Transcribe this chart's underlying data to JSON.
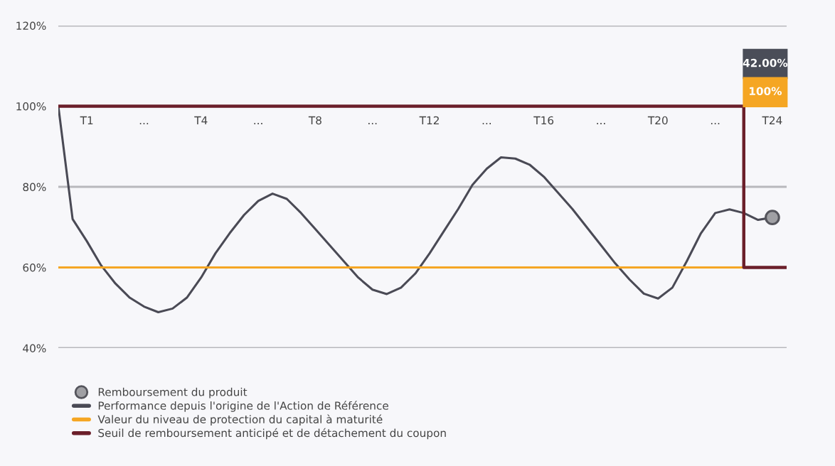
{
  "chart_data": {
    "type": "line",
    "ylim": [
      40,
      120
    ],
    "yticks": [
      {
        "value": 40,
        "label": "40%"
      },
      {
        "value": 60,
        "label": "60%"
      },
      {
        "value": 80,
        "label": "80%"
      },
      {
        "value": 100,
        "label": "100%"
      },
      {
        "value": 120,
        "label": "120%"
      }
    ],
    "categories": [
      null,
      null,
      "T1",
      null,
      null,
      null,
      "...",
      null,
      null,
      null,
      "T4",
      null,
      null,
      null,
      "...",
      null,
      null,
      null,
      "T8",
      null,
      null,
      null,
      "...",
      null,
      null,
      null,
      "T12",
      null,
      null,
      null,
      "...",
      null,
      null,
      null,
      "T16",
      null,
      null,
      null,
      "...",
      null,
      null,
      null,
      "T20",
      null,
      null,
      null,
      "...",
      null,
      null,
      null,
      "T24",
      null
    ],
    "grid": "y",
    "legend": "bottom left",
    "series": [
      {
        "name": "Remboursement du produit",
        "type": "scatter",
        "marker": "circle",
        "color": "#a0a0a4",
        "values": [
          null,
          null,
          null,
          null,
          null,
          null,
          null,
          null,
          null,
          null,
          null,
          null,
          null,
          null,
          null,
          null,
          null,
          null,
          null,
          null,
          null,
          null,
          null,
          null,
          null,
          null,
          null,
          null,
          null,
          null,
          null,
          null,
          null,
          null,
          null,
          null,
          null,
          null,
          null,
          null,
          null,
          null,
          null,
          null,
          null,
          null,
          null,
          null,
          null,
          null,
          72.4,
          null
        ]
      },
      {
        "name": "Performance depuis l'origine de l'Action de Référence",
        "color": "#4a4a55",
        "values": [
          100,
          72,
          66.5,
          60.5,
          56,
          52.5,
          50.3,
          48.9,
          49.8,
          52.5,
          57.5,
          63.5,
          68.5,
          73,
          76.5,
          78.3,
          77,
          73.5,
          69.5,
          65.5,
          61.5,
          57.5,
          54.5,
          53.4,
          55,
          58.5,
          63.5,
          69,
          74.5,
          80.5,
          84.5,
          87.3,
          87,
          85.5,
          82.5,
          78.5,
          74.5,
          70,
          65.5,
          61,
          57,
          53.5,
          52.3,
          55,
          61.5,
          68.5,
          73.5,
          74.4,
          73.5,
          71.8,
          72.4,
          null
        ]
      },
      {
        "name": "Valeur du niveau de protection du capital à maturité",
        "color": "#f5a623",
        "values": [
          60,
          60,
          60,
          60,
          60,
          60,
          60,
          60,
          60,
          60,
          60,
          60,
          60,
          60,
          60,
          60,
          60,
          60,
          60,
          60,
          60,
          60,
          60,
          60,
          60,
          60,
          60,
          60,
          60,
          60,
          60,
          60,
          60,
          60,
          60,
          60,
          60,
          60,
          60,
          60,
          60,
          60,
          60,
          60,
          60,
          60,
          60,
          60,
          60,
          null,
          null,
          null
        ]
      },
      {
        "name": "Seuil de remboursement anticipé et de détachement du coupon",
        "type": "step",
        "color": "#6b1f2a",
        "values": [
          100,
          100,
          100,
          100,
          100,
          100,
          100,
          100,
          100,
          100,
          100,
          100,
          100,
          100,
          100,
          100,
          100,
          100,
          100,
          100,
          100,
          100,
          100,
          100,
          100,
          100,
          100,
          100,
          100,
          100,
          100,
          100,
          100,
          100,
          100,
          100,
          100,
          100,
          100,
          100,
          100,
          100,
          100,
          100,
          100,
          100,
          100,
          100,
          100,
          60,
          60,
          60
        ]
      }
    ],
    "annotations": [
      "42.00%",
      "100%"
    ]
  }
}
